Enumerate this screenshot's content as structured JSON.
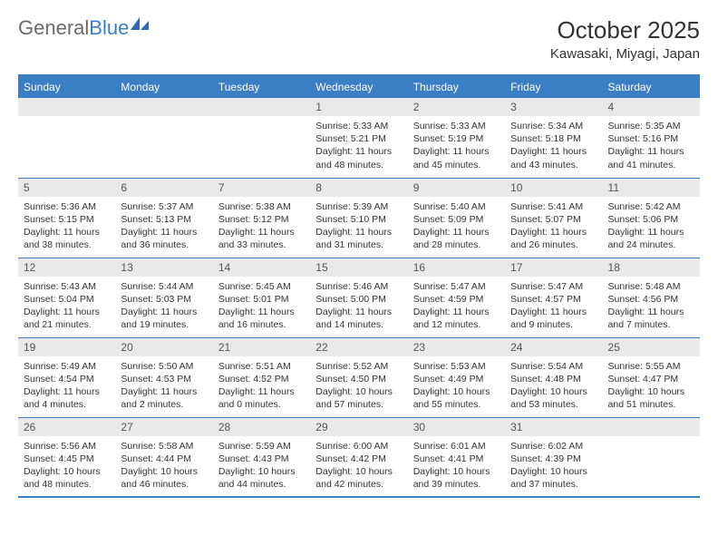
{
  "logo": {
    "text_gray": "General",
    "text_blue": "Blue"
  },
  "title": "October 2025",
  "location": "Kawasaki, Miyagi, Japan",
  "colors": {
    "accent": "#3a7fc4",
    "header_bg": "#3a7fc4",
    "daynum_bg": "#e9e9e9",
    "text": "#333333",
    "logo_gray": "#6b6b6b"
  },
  "day_names": [
    "Sunday",
    "Monday",
    "Tuesday",
    "Wednesday",
    "Thursday",
    "Friday",
    "Saturday"
  ],
  "weeks": [
    [
      {
        "blank": true
      },
      {
        "blank": true
      },
      {
        "blank": true
      },
      {
        "day": "1",
        "sunrise": "Sunrise: 5:33 AM",
        "sunset": "Sunset: 5:21 PM",
        "daylight": "Daylight: 11 hours and 48 minutes."
      },
      {
        "day": "2",
        "sunrise": "Sunrise: 5:33 AM",
        "sunset": "Sunset: 5:19 PM",
        "daylight": "Daylight: 11 hours and 45 minutes."
      },
      {
        "day": "3",
        "sunrise": "Sunrise: 5:34 AM",
        "sunset": "Sunset: 5:18 PM",
        "daylight": "Daylight: 11 hours and 43 minutes."
      },
      {
        "day": "4",
        "sunrise": "Sunrise: 5:35 AM",
        "sunset": "Sunset: 5:16 PM",
        "daylight": "Daylight: 11 hours and 41 minutes."
      }
    ],
    [
      {
        "day": "5",
        "sunrise": "Sunrise: 5:36 AM",
        "sunset": "Sunset: 5:15 PM",
        "daylight": "Daylight: 11 hours and 38 minutes."
      },
      {
        "day": "6",
        "sunrise": "Sunrise: 5:37 AM",
        "sunset": "Sunset: 5:13 PM",
        "daylight": "Daylight: 11 hours and 36 minutes."
      },
      {
        "day": "7",
        "sunrise": "Sunrise: 5:38 AM",
        "sunset": "Sunset: 5:12 PM",
        "daylight": "Daylight: 11 hours and 33 minutes."
      },
      {
        "day": "8",
        "sunrise": "Sunrise: 5:39 AM",
        "sunset": "Sunset: 5:10 PM",
        "daylight": "Daylight: 11 hours and 31 minutes."
      },
      {
        "day": "9",
        "sunrise": "Sunrise: 5:40 AM",
        "sunset": "Sunset: 5:09 PM",
        "daylight": "Daylight: 11 hours and 28 minutes."
      },
      {
        "day": "10",
        "sunrise": "Sunrise: 5:41 AM",
        "sunset": "Sunset: 5:07 PM",
        "daylight": "Daylight: 11 hours and 26 minutes."
      },
      {
        "day": "11",
        "sunrise": "Sunrise: 5:42 AM",
        "sunset": "Sunset: 5:06 PM",
        "daylight": "Daylight: 11 hours and 24 minutes."
      }
    ],
    [
      {
        "day": "12",
        "sunrise": "Sunrise: 5:43 AM",
        "sunset": "Sunset: 5:04 PM",
        "daylight": "Daylight: 11 hours and 21 minutes."
      },
      {
        "day": "13",
        "sunrise": "Sunrise: 5:44 AM",
        "sunset": "Sunset: 5:03 PM",
        "daylight": "Daylight: 11 hours and 19 minutes."
      },
      {
        "day": "14",
        "sunrise": "Sunrise: 5:45 AM",
        "sunset": "Sunset: 5:01 PM",
        "daylight": "Daylight: 11 hours and 16 minutes."
      },
      {
        "day": "15",
        "sunrise": "Sunrise: 5:46 AM",
        "sunset": "Sunset: 5:00 PM",
        "daylight": "Daylight: 11 hours and 14 minutes."
      },
      {
        "day": "16",
        "sunrise": "Sunrise: 5:47 AM",
        "sunset": "Sunset: 4:59 PM",
        "daylight": "Daylight: 11 hours and 12 minutes."
      },
      {
        "day": "17",
        "sunrise": "Sunrise: 5:47 AM",
        "sunset": "Sunset: 4:57 PM",
        "daylight": "Daylight: 11 hours and 9 minutes."
      },
      {
        "day": "18",
        "sunrise": "Sunrise: 5:48 AM",
        "sunset": "Sunset: 4:56 PM",
        "daylight": "Daylight: 11 hours and 7 minutes."
      }
    ],
    [
      {
        "day": "19",
        "sunrise": "Sunrise: 5:49 AM",
        "sunset": "Sunset: 4:54 PM",
        "daylight": "Daylight: 11 hours and 4 minutes."
      },
      {
        "day": "20",
        "sunrise": "Sunrise: 5:50 AM",
        "sunset": "Sunset: 4:53 PM",
        "daylight": "Daylight: 11 hours and 2 minutes."
      },
      {
        "day": "21",
        "sunrise": "Sunrise: 5:51 AM",
        "sunset": "Sunset: 4:52 PM",
        "daylight": "Daylight: 11 hours and 0 minutes."
      },
      {
        "day": "22",
        "sunrise": "Sunrise: 5:52 AM",
        "sunset": "Sunset: 4:50 PM",
        "daylight": "Daylight: 10 hours and 57 minutes."
      },
      {
        "day": "23",
        "sunrise": "Sunrise: 5:53 AM",
        "sunset": "Sunset: 4:49 PM",
        "daylight": "Daylight: 10 hours and 55 minutes."
      },
      {
        "day": "24",
        "sunrise": "Sunrise: 5:54 AM",
        "sunset": "Sunset: 4:48 PM",
        "daylight": "Daylight: 10 hours and 53 minutes."
      },
      {
        "day": "25",
        "sunrise": "Sunrise: 5:55 AM",
        "sunset": "Sunset: 4:47 PM",
        "daylight": "Daylight: 10 hours and 51 minutes."
      }
    ],
    [
      {
        "day": "26",
        "sunrise": "Sunrise: 5:56 AM",
        "sunset": "Sunset: 4:45 PM",
        "daylight": "Daylight: 10 hours and 48 minutes."
      },
      {
        "day": "27",
        "sunrise": "Sunrise: 5:58 AM",
        "sunset": "Sunset: 4:44 PM",
        "daylight": "Daylight: 10 hours and 46 minutes."
      },
      {
        "day": "28",
        "sunrise": "Sunrise: 5:59 AM",
        "sunset": "Sunset: 4:43 PM",
        "daylight": "Daylight: 10 hours and 44 minutes."
      },
      {
        "day": "29",
        "sunrise": "Sunrise: 6:00 AM",
        "sunset": "Sunset: 4:42 PM",
        "daylight": "Daylight: 10 hours and 42 minutes."
      },
      {
        "day": "30",
        "sunrise": "Sunrise: 6:01 AM",
        "sunset": "Sunset: 4:41 PM",
        "daylight": "Daylight: 10 hours and 39 minutes."
      },
      {
        "day": "31",
        "sunrise": "Sunrise: 6:02 AM",
        "sunset": "Sunset: 4:39 PM",
        "daylight": "Daylight: 10 hours and 37 minutes."
      },
      {
        "blank": true
      }
    ]
  ]
}
